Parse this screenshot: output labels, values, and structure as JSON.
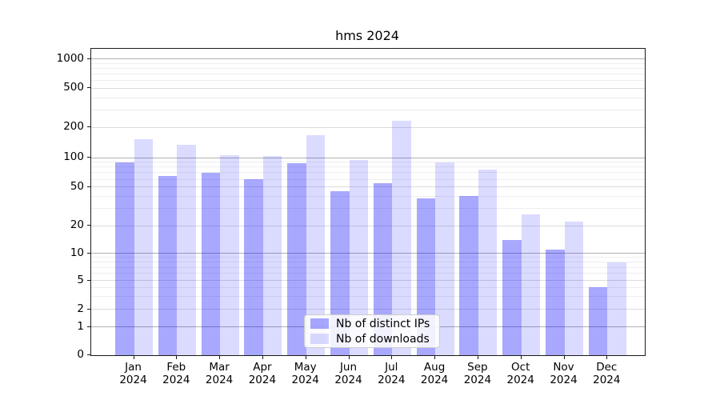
{
  "title": "hms 2024",
  "chart_data": {
    "type": "bar",
    "title": "hms 2024",
    "categories": [
      "Jan",
      "Feb",
      "Mar",
      "Apr",
      "May",
      "Jun",
      "Jul",
      "Aug",
      "Sep",
      "Oct",
      "Nov",
      "Dec"
    ],
    "x_year_label": "2024",
    "series": [
      {
        "name": "Nb of distinct IPs",
        "values": [
          90,
          65,
          70,
          60,
          87,
          45,
          55,
          38,
          40,
          14,
          11,
          4
        ]
      },
      {
        "name": "Nb of downloads",
        "values": [
          153,
          133,
          105,
          104,
          168,
          95,
          232,
          90,
          75,
          26,
          22,
          8
        ]
      }
    ],
    "yscale": "symlog",
    "ytick_values": [
      0,
      1,
      2,
      5,
      10,
      20,
      50,
      100,
      200,
      500,
      1000
    ],
    "ytick_labels": [
      "0",
      "1",
      "2",
      "5",
      "10",
      "20",
      "50",
      "100",
      "200",
      "500",
      "1000"
    ],
    "minor_gridline_values": [
      3,
      4,
      6,
      7,
      8,
      9,
      30,
      40,
      60,
      70,
      80,
      90,
      300,
      400,
      600,
      700,
      800,
      900
    ],
    "ylim": [
      0,
      1400
    ],
    "grid": true,
    "legend_position": "lower center inside"
  },
  "legend": {
    "items": [
      {
        "label": "Nb of distinct IPs",
        "color": "rgba(0,0,255,0.34)"
      },
      {
        "label": "Nb of downloads",
        "color": "rgba(0,0,255,0.14)"
      }
    ]
  },
  "colors": {
    "bar_ips": "rgba(0,0,255,0.34)",
    "bar_downloads": "rgba(0,0,255,0.14)",
    "grid_major": "#b0b0b0",
    "grid_mid": "#dcdcdc",
    "grid_minor": "#eeeeee",
    "spine": "#1a1a1a",
    "background": "#ffffff"
  }
}
